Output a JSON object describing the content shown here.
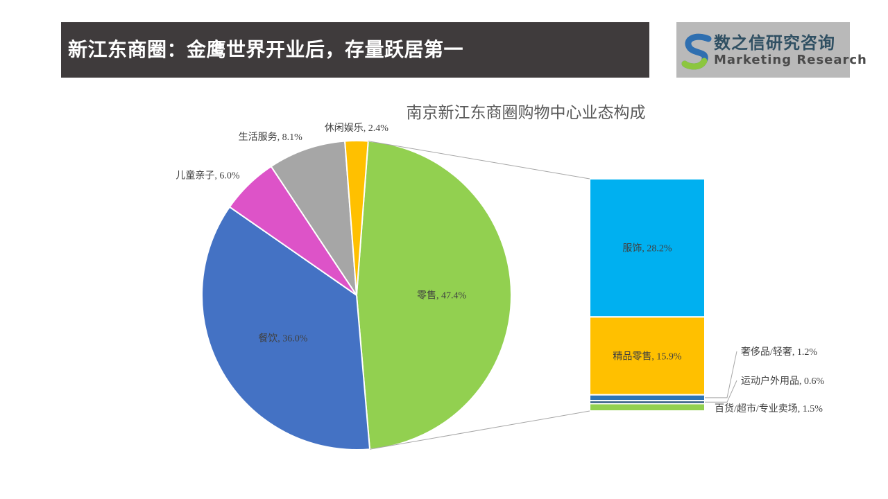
{
  "header": {
    "title": "新江东商圈：金鹰世界开业后，存量跃居第一"
  },
  "logo": {
    "name": "数之信研究咨询",
    "subtitle": "Marketing Research"
  },
  "chart_data": {
    "type": "bar-of-pie",
    "title": "南京新江东商圈购物中心业态构成",
    "pie": {
      "slices": [
        {
          "name": "零售",
          "value": 47.4,
          "color": "#92d050"
        },
        {
          "name": "餐饮",
          "value": 36.0,
          "color": "#4472c4"
        },
        {
          "name": "儿童亲子",
          "value": 6.0,
          "color": "#dd53c8"
        },
        {
          "name": "生活服务",
          "value": 8.1,
          "color": "#a6a6a6"
        },
        {
          "name": "休闲娱乐",
          "value": 2.4,
          "color": "#ffc000"
        }
      ]
    },
    "breakdown_of": "零售",
    "bar": {
      "segments": [
        {
          "name": "服饰",
          "value": 28.2,
          "color": "#00b0f0"
        },
        {
          "name": "精品零售",
          "value": 15.9,
          "color": "#ffc000"
        },
        {
          "name": "奢侈品/轻奢",
          "value": 1.2,
          "color": "#2e75b6"
        },
        {
          "name": "运动户外用品",
          "value": 0.6,
          "color": "#1f4e79"
        },
        {
          "name": "百货/超市/专业卖场",
          "value": 1.5,
          "color": "#92d050"
        }
      ]
    }
  }
}
